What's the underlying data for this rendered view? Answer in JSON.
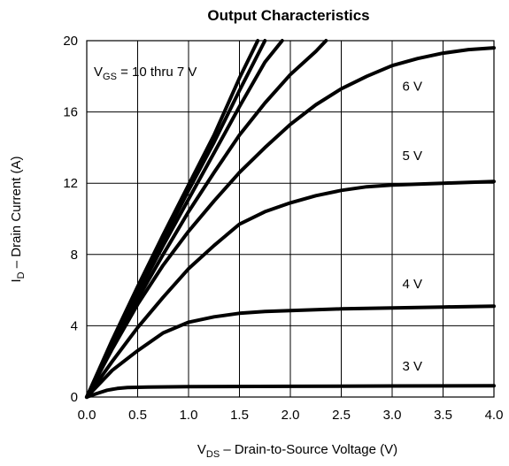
{
  "chart_data": {
    "type": "line",
    "title": "Output Characteristics",
    "xlabel": {
      "main": "V",
      "sub": "DS",
      "rest": "  –  Drain-to-Source Voltage (V)"
    },
    "ylabel": {
      "main": "I",
      "sub": "D",
      "rest": "  –  Drain Current (A)"
    },
    "xlim": [
      0,
      4
    ],
    "ylim": [
      0,
      20
    ],
    "xticks": [
      "0.0",
      "0.5",
      "1.0",
      "1.5",
      "2.0",
      "2.5",
      "3.0",
      "3.5",
      "4.0"
    ],
    "yticks": [
      "0",
      "4",
      "8",
      "12",
      "16",
      "20"
    ],
    "grid": true,
    "annotation": {
      "main": "V",
      "sub": "GS",
      "rest": " = 10 thru 7 V"
    },
    "series": [
      {
        "name": "",
        "x": [
          0,
          0.25,
          0.5,
          0.75,
          1.0,
          1.25,
          1.5,
          1.68
        ],
        "y": [
          0,
          3.2,
          6.2,
          9.1,
          11.9,
          14.7,
          17.9,
          20
        ]
      },
      {
        "name": "",
        "x": [
          0,
          0.25,
          0.5,
          0.75,
          1.0,
          1.25,
          1.5,
          1.75
        ],
        "y": [
          0,
          3.1,
          6.0,
          8.8,
          11.6,
          14.3,
          17.2,
          20
        ]
      },
      {
        "name": "",
        "x": [
          0,
          0.25,
          0.5,
          0.75,
          1.0,
          1.25,
          1.5,
          1.75,
          1.92
        ],
        "y": [
          0,
          3.0,
          5.8,
          8.5,
          11.1,
          13.7,
          16.3,
          18.8,
          20
        ]
      },
      {
        "name": "",
        "x": [
          0,
          0.25,
          0.5,
          0.75,
          1.0,
          1.25,
          1.5,
          1.75,
          2.0,
          2.25,
          2.35
        ],
        "y": [
          0,
          2.8,
          5.5,
          8.0,
          10.4,
          12.6,
          14.7,
          16.5,
          18.1,
          19.4,
          20
        ]
      },
      {
        "name": "6 V",
        "x": [
          0,
          0.25,
          0.5,
          0.75,
          1.0,
          1.25,
          1.5,
          1.75,
          2.0,
          2.25,
          2.5,
          2.75,
          3.0,
          3.25,
          3.5,
          3.75,
          4.0
        ],
        "y": [
          0,
          2.7,
          5.2,
          7.4,
          9.3,
          11.0,
          12.6,
          14.0,
          15.3,
          16.4,
          17.3,
          18.0,
          18.6,
          19.0,
          19.3,
          19.5,
          19.6
        ]
      },
      {
        "name": "5 V",
        "x": [
          0,
          0.25,
          0.5,
          0.75,
          1.0,
          1.25,
          1.5,
          1.75,
          2.0,
          2.25,
          2.5,
          2.75,
          3.0,
          3.5,
          4.0
        ],
        "y": [
          0,
          2.0,
          3.9,
          5.6,
          7.2,
          8.5,
          9.7,
          10.4,
          10.9,
          11.3,
          11.6,
          11.8,
          11.9,
          12.0,
          12.1
        ]
      },
      {
        "name": "4 V",
        "x": [
          0,
          0.25,
          0.5,
          0.75,
          1.0,
          1.25,
          1.5,
          1.75,
          2.0,
          2.5,
          3.0,
          3.5,
          4.0
        ],
        "y": [
          0,
          1.5,
          2.6,
          3.6,
          4.2,
          4.5,
          4.7,
          4.8,
          4.85,
          4.95,
          5.0,
          5.05,
          5.1
        ]
      },
      {
        "name": "3 V",
        "x": [
          0,
          0.1,
          0.2,
          0.3,
          0.4,
          0.6,
          1.0,
          2.0,
          3.0,
          4.0
        ],
        "y": [
          0,
          0.2,
          0.38,
          0.48,
          0.53,
          0.56,
          0.58,
          0.6,
          0.62,
          0.63
        ]
      }
    ],
    "series_labels": [
      {
        "text": "6 V",
        "x": 3.1,
        "y": 17.2
      },
      {
        "text": "5 V",
        "x": 3.1,
        "y": 13.3
      },
      {
        "text": "4 V",
        "x": 3.1,
        "y": 6.1
      },
      {
        "text": "3 V",
        "x": 3.1,
        "y": 1.5
      }
    ],
    "colors": {
      "line": "#000000",
      "grid": "#000000",
      "background": "#ffffff"
    }
  }
}
